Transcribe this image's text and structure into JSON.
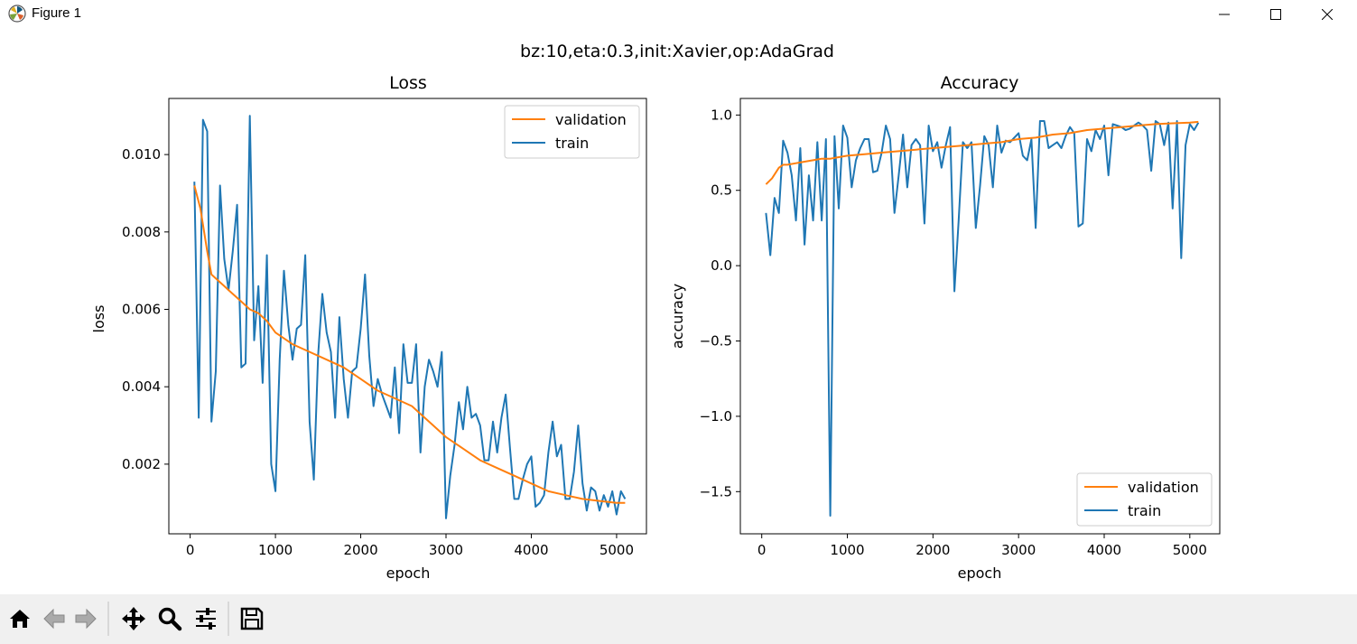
{
  "window": {
    "title": "Figure 1"
  },
  "figure": {
    "suptitle": "bz:10,eta:0.3,init:Xavier,op:AdaGrad"
  },
  "colors": {
    "train": "#1f77b4",
    "validation": "#ff7f0e",
    "axis": "#000000",
    "toolbar_bg": "#f0f0f0"
  },
  "toolbar": {
    "icons": [
      "home-icon",
      "back-icon",
      "forward-icon",
      "pan-icon",
      "zoom-icon",
      "configure-subplots-icon",
      "save-icon"
    ]
  },
  "chart_data": [
    {
      "type": "line",
      "title": "Loss",
      "xlabel": "epoch",
      "ylabel": "loss",
      "xlim": [
        -250,
        5350
      ],
      "ylim": [
        0.0002,
        0.01145
      ],
      "xticks": [
        0,
        1000,
        2000,
        3000,
        4000,
        5000
      ],
      "yticks": [
        0.002,
        0.004,
        0.006,
        0.008,
        0.01
      ],
      "ytick_labels": [
        "0.002",
        "0.004",
        "0.006",
        "0.008",
        "0.010"
      ],
      "legend": {
        "position": "upper right",
        "entries": [
          "validation",
          "train"
        ]
      },
      "series": [
        {
          "name": "validation",
          "color": "#ff7f0e",
          "x": [
            50,
            120,
            200,
            250,
            300,
            400,
            500,
            600,
            700,
            800,
            900,
            1000,
            1200,
            1400,
            1600,
            1800,
            2000,
            2200,
            2400,
            2600,
            2800,
            3000,
            3200,
            3400,
            3600,
            3800,
            4000,
            4200,
            4400,
            4600,
            4800,
            5000,
            5100
          ],
          "y": [
            0.0092,
            0.0086,
            0.0075,
            0.0069,
            0.0068,
            0.0066,
            0.0064,
            0.0062,
            0.006,
            0.0059,
            0.0057,
            0.0054,
            0.0051,
            0.0049,
            0.0047,
            0.0045,
            0.0042,
            0.0039,
            0.0037,
            0.0035,
            0.0031,
            0.0027,
            0.0024,
            0.0021,
            0.0019,
            0.0017,
            0.0015,
            0.0013,
            0.0012,
            0.0011,
            0.00105,
            0.001,
            0.001
          ]
        },
        {
          "name": "train",
          "color": "#1f77b4",
          "x": [
            50,
            100,
            150,
            200,
            250,
            300,
            350,
            400,
            450,
            500,
            550,
            600,
            650,
            700,
            750,
            800,
            850,
            900,
            950,
            1000,
            1050,
            1100,
            1150,
            1200,
            1250,
            1300,
            1350,
            1400,
            1450,
            1500,
            1550,
            1600,
            1650,
            1700,
            1750,
            1800,
            1850,
            1900,
            1950,
            2000,
            2050,
            2100,
            2150,
            2200,
            2250,
            2300,
            2350,
            2400,
            2450,
            2500,
            2550,
            2600,
            2650,
            2700,
            2750,
            2800,
            2850,
            2900,
            2950,
            3000,
            3050,
            3100,
            3150,
            3200,
            3250,
            3300,
            3350,
            3400,
            3450,
            3500,
            3550,
            3600,
            3650,
            3700,
            3750,
            3800,
            3850,
            3900,
            3950,
            4000,
            4050,
            4100,
            4150,
            4200,
            4250,
            4300,
            4350,
            4400,
            4450,
            4500,
            4550,
            4600,
            4650,
            4700,
            4750,
            4800,
            4850,
            4900,
            4950,
            5000,
            5050,
            5100
          ],
          "y": [
            0.0093,
            0.0032,
            0.0109,
            0.0106,
            0.0031,
            0.0044,
            0.0092,
            0.0073,
            0.0065,
            0.0075,
            0.0087,
            0.0045,
            0.0046,
            0.011,
            0.0052,
            0.0066,
            0.0041,
            0.0074,
            0.002,
            0.0013,
            0.0047,
            0.007,
            0.0056,
            0.0047,
            0.0055,
            0.0056,
            0.0074,
            0.0031,
            0.0016,
            0.0048,
            0.0064,
            0.0054,
            0.0049,
            0.0032,
            0.0058,
            0.0042,
            0.0032,
            0.0044,
            0.0045,
            0.0055,
            0.0069,
            0.0048,
            0.0035,
            0.0042,
            0.0038,
            0.0035,
            0.0032,
            0.0045,
            0.0028,
            0.0051,
            0.0041,
            0.0041,
            0.0051,
            0.0023,
            0.004,
            0.0047,
            0.0044,
            0.004,
            0.0049,
            0.0006,
            0.0017,
            0.0025,
            0.0036,
            0.0029,
            0.004,
            0.0032,
            0.0033,
            0.003,
            0.0021,
            0.0021,
            0.0031,
            0.0023,
            0.0032,
            0.0038,
            0.0024,
            0.0011,
            0.0011,
            0.0016,
            0.002,
            0.0022,
            0.0009,
            0.001,
            0.0012,
            0.0023,
            0.0031,
            0.0022,
            0.0025,
            0.0011,
            0.0011,
            0.0018,
            0.003,
            0.0015,
            0.0008,
            0.0014,
            0.0013,
            0.0008,
            0.0012,
            0.0009,
            0.0013,
            0.0007,
            0.0013,
            0.0011
          ]
        }
      ]
    },
    {
      "type": "line",
      "title": "Accuracy",
      "xlabel": "epoch",
      "ylabel": "accuracy",
      "xlim": [
        -250,
        5350
      ],
      "ylim": [
        -1.78,
        1.11
      ],
      "xticks": [
        0,
        1000,
        2000,
        3000,
        4000,
        5000
      ],
      "yticks": [
        -1.5,
        -1.0,
        -0.5,
        0.0,
        0.5,
        1.0
      ],
      "ytick_labels": [
        "−1.5",
        "−1.0",
        "−0.5",
        "0.0",
        "0.5",
        "1.0"
      ],
      "legend": {
        "position": "lower right",
        "entries": [
          "validation",
          "train"
        ]
      },
      "series": [
        {
          "name": "validation",
          "color": "#ff7f0e",
          "x": [
            50,
            120,
            200,
            250,
            300,
            400,
            500,
            600,
            700,
            800,
            900,
            1000,
            1200,
            1400,
            1600,
            1800,
            2000,
            2200,
            2400,
            2600,
            2800,
            3000,
            3200,
            3400,
            3600,
            3800,
            4000,
            4200,
            4400,
            4600,
            4800,
            5000,
            5100
          ],
          "y": [
            0.54,
            0.58,
            0.65,
            0.67,
            0.67,
            0.68,
            0.69,
            0.7,
            0.71,
            0.71,
            0.72,
            0.73,
            0.74,
            0.75,
            0.76,
            0.77,
            0.78,
            0.79,
            0.8,
            0.81,
            0.82,
            0.84,
            0.85,
            0.87,
            0.88,
            0.9,
            0.91,
            0.92,
            0.93,
            0.94,
            0.945,
            0.95,
            0.955
          ]
        },
        {
          "name": "train",
          "color": "#1f77b4",
          "x": [
            50,
            100,
            150,
            200,
            250,
            300,
            350,
            400,
            450,
            500,
            550,
            600,
            650,
            700,
            750,
            800,
            850,
            900,
            950,
            1000,
            1050,
            1100,
            1150,
            1200,
            1250,
            1300,
            1350,
            1400,
            1450,
            1500,
            1550,
            1600,
            1650,
            1700,
            1750,
            1800,
            1850,
            1900,
            1950,
            2000,
            2050,
            2100,
            2150,
            2200,
            2250,
            2300,
            2350,
            2400,
            2450,
            2500,
            2550,
            2600,
            2650,
            2700,
            2750,
            2800,
            2850,
            2900,
            2950,
            3000,
            3050,
            3100,
            3150,
            3200,
            3250,
            3300,
            3350,
            3400,
            3450,
            3500,
            3550,
            3600,
            3650,
            3700,
            3750,
            3800,
            3850,
            3900,
            3950,
            4000,
            4050,
            4100,
            4150,
            4200,
            4250,
            4300,
            4350,
            4400,
            4450,
            4500,
            4550,
            4600,
            4650,
            4700,
            4750,
            4800,
            4850,
            4900,
            4950,
            5000,
            5050,
            5100
          ],
          "y": [
            0.35,
            0.07,
            0.45,
            0.35,
            0.83,
            0.75,
            0.6,
            0.3,
            0.78,
            0.14,
            0.6,
            0.3,
            0.82,
            0.3,
            0.84,
            -1.66,
            0.86,
            0.38,
            0.93,
            0.85,
            0.52,
            0.7,
            0.78,
            0.84,
            0.84,
            0.62,
            0.63,
            0.75,
            0.93,
            0.84,
            0.35,
            0.6,
            0.87,
            0.52,
            0.8,
            0.84,
            0.8,
            0.28,
            0.93,
            0.76,
            0.82,
            0.65,
            0.8,
            0.92,
            -0.17,
            0.3,
            0.82,
            0.78,
            0.82,
            0.25,
            0.53,
            0.86,
            0.8,
            0.52,
            0.93,
            0.75,
            0.83,
            0.82,
            0.85,
            0.88,
            0.73,
            0.7,
            0.84,
            0.25,
            0.96,
            0.96,
            0.78,
            0.8,
            0.82,
            0.78,
            0.86,
            0.92,
            0.88,
            0.26,
            0.28,
            0.84,
            0.76,
            0.9,
            0.84,
            0.93,
            0.6,
            0.94,
            0.93,
            0.92,
            0.9,
            0.91,
            0.93,
            0.95,
            0.93,
            0.9,
            0.63,
            0.96,
            0.94,
            0.8,
            0.95,
            0.38,
            0.96,
            0.05,
            0.8,
            0.94,
            0.9,
            0.95
          ]
        }
      ]
    }
  ]
}
